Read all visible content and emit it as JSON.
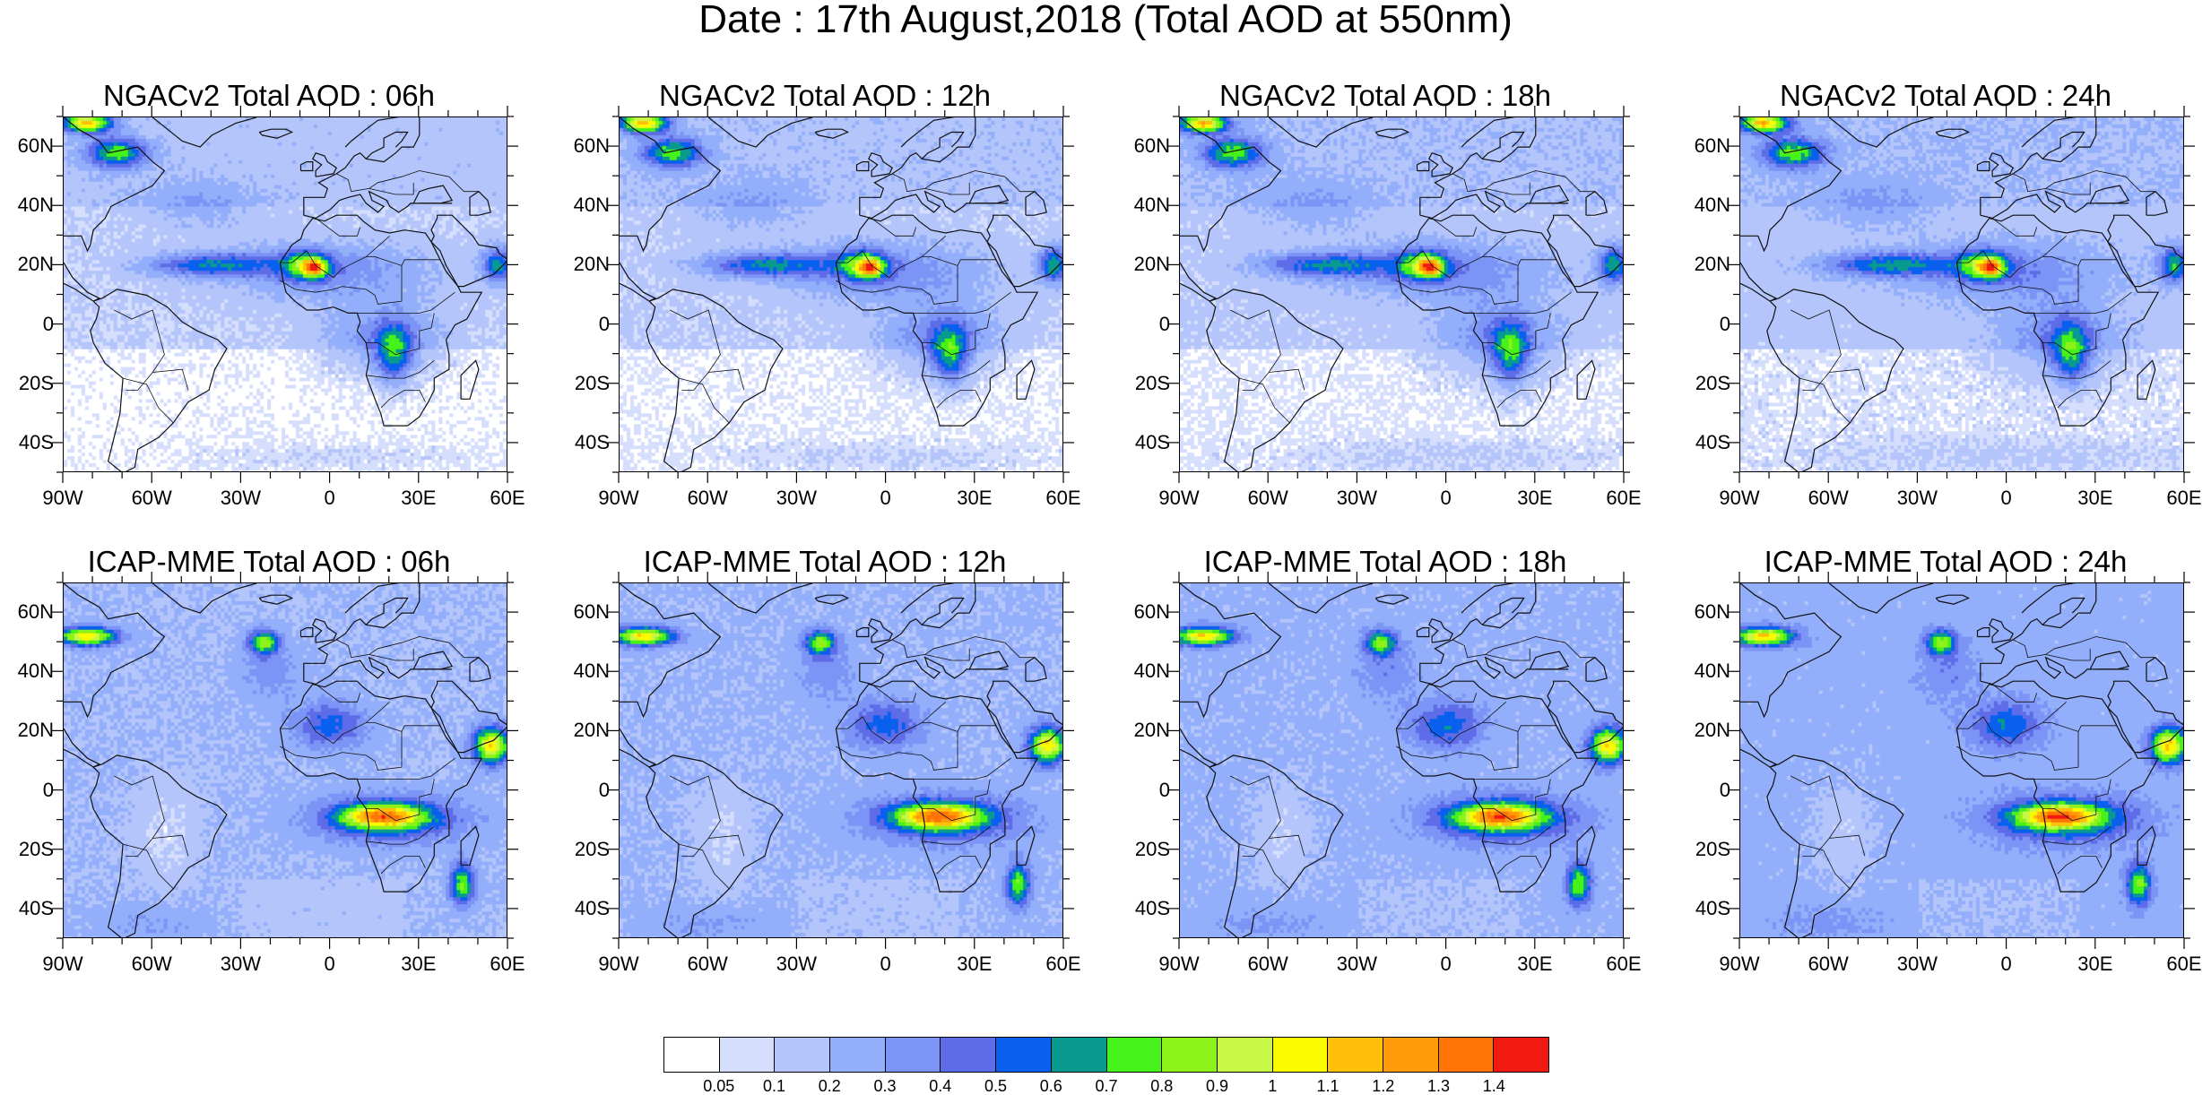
{
  "title": "Date : 17th August,2018 (Total AOD at 550nm)",
  "lat_ticks": [
    "60N",
    "40N",
    "20N",
    "0",
    "20S",
    "40S"
  ],
  "lat_values": [
    60,
    40,
    20,
    0,
    -20,
    -40
  ],
  "lon_ticks": [
    "90W",
    "60W",
    "30W",
    "0",
    "30E",
    "60E"
  ],
  "lon_values": [
    -90,
    -60,
    -30,
    0,
    30,
    60
  ],
  "map_extent": {
    "lon": [
      -90,
      60
    ],
    "lat": [
      -50,
      70
    ]
  },
  "panels": [
    {
      "title": "NGACv2 Total AOD : 06h",
      "model": "NGACv2",
      "hour": 6
    },
    {
      "title": "NGACv2 Total AOD : 12h",
      "model": "NGACv2",
      "hour": 12
    },
    {
      "title": "NGACv2 Total AOD : 18h",
      "model": "NGACv2",
      "hour": 18
    },
    {
      "title": "NGACv2 Total AOD : 24h",
      "model": "NGACv2",
      "hour": 24
    },
    {
      "title": "ICAP-MME Total AOD : 06h",
      "model": "ICAP-MME",
      "hour": 6
    },
    {
      "title": "ICAP-MME Total AOD : 12h",
      "model": "ICAP-MME",
      "hour": 12
    },
    {
      "title": "ICAP-MME Total AOD : 18h",
      "model": "ICAP-MME",
      "hour": 18
    },
    {
      "title": "ICAP-MME Total AOD : 24h",
      "model": "ICAP-MME",
      "hour": 24
    }
  ],
  "colorbar": {
    "labels": [
      "0.05",
      "0.1",
      "0.2",
      "0.3",
      "0.4",
      "0.5",
      "0.6",
      "0.7",
      "0.8",
      "0.9",
      "1",
      "1.1",
      "1.2",
      "1.3",
      "1.4"
    ],
    "colors": [
      "#ffffff",
      "#d6defd",
      "#b4c5fb",
      "#93aefa",
      "#7b94f6",
      "#5f6ce8",
      "#0a60ee",
      "#089a8e",
      "#45f21a",
      "#8cf21a",
      "#c6f845",
      "#fbfb00",
      "#ffc00a",
      "#ff9a08",
      "#ff7307",
      "#f01a10"
    ]
  }
}
